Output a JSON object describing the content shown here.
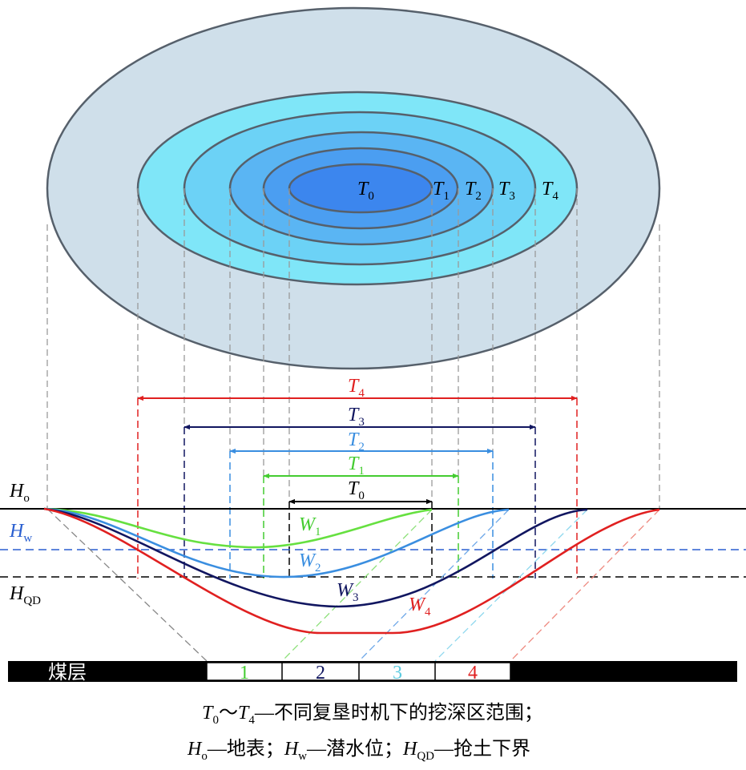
{
  "zones": [
    {
      "base": "T",
      "sub": "0"
    },
    {
      "base": "T",
      "sub": "1"
    },
    {
      "base": "T",
      "sub": "2"
    },
    {
      "base": "T",
      "sub": "3"
    },
    {
      "base": "T",
      "sub": "4"
    }
  ],
  "levels": [
    {
      "base": "H",
      "sub": "o"
    },
    {
      "base": "H",
      "sub": "w"
    },
    {
      "base": "H",
      "sub": "QD"
    }
  ],
  "curves": [
    {
      "base": "W",
      "sub": "1"
    },
    {
      "base": "W",
      "sub": "2"
    },
    {
      "base": "W",
      "sub": "3"
    },
    {
      "base": "W",
      "sub": "4"
    }
  ],
  "seam": {
    "label": "煤层",
    "blocks": [
      "1",
      "2",
      "3",
      "4"
    ]
  },
  "caption": {
    "line1": [
      "T",
      "0",
      "～",
      "T",
      "4",
      "—不同复垦时机下的挖深区范围；"
    ],
    "line2": [
      "H",
      "o",
      "—地表；",
      "H",
      "w",
      "—潜水位；",
      "H",
      "QD",
      "—抢土下界"
    ]
  }
}
